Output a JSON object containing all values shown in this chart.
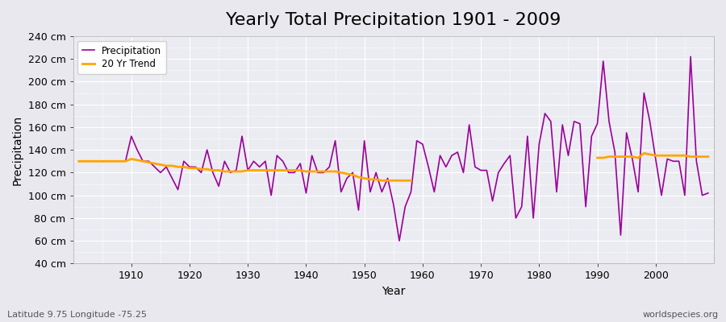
{
  "title": "Yearly Total Precipitation 1901 - 2009",
  "xlabel": "Year",
  "ylabel": "Precipitation",
  "lat_lon_label": "Latitude 9.75 Longitude -75.25",
  "watermark": "worldspecies.org",
  "years": [
    1901,
    1902,
    1903,
    1904,
    1905,
    1906,
    1907,
    1908,
    1909,
    1910,
    1911,
    1912,
    1913,
    1914,
    1915,
    1916,
    1917,
    1918,
    1919,
    1920,
    1921,
    1922,
    1923,
    1924,
    1925,
    1926,
    1927,
    1928,
    1929,
    1930,
    1931,
    1932,
    1933,
    1934,
    1935,
    1936,
    1937,
    1938,
    1939,
    1940,
    1941,
    1942,
    1943,
    1944,
    1945,
    1946,
    1947,
    1948,
    1949,
    1950,
    1951,
    1952,
    1953,
    1954,
    1955,
    1956,
    1957,
    1958,
    1959,
    1960,
    1961,
    1962,
    1963,
    1964,
    1965,
    1966,
    1967,
    1968,
    1969,
    1970,
    1971,
    1972,
    1973,
    1974,
    1975,
    1976,
    1977,
    1978,
    1979,
    1980,
    1981,
    1982,
    1983,
    1984,
    1985,
    1986,
    1987,
    1988,
    1989,
    1990,
    1991,
    1992,
    1993,
    1994,
    1995,
    1996,
    1997,
    1998,
    1999,
    2000,
    2001,
    2002,
    2003,
    2004,
    2005,
    2006,
    2007,
    2008,
    2009
  ],
  "precipitation": [
    130,
    130,
    130,
    130,
    130,
    130,
    130,
    130,
    130,
    152,
    140,
    130,
    130,
    125,
    120,
    125,
    115,
    105,
    130,
    125,
    125,
    120,
    140,
    120,
    108,
    130,
    120,
    122,
    152,
    122,
    130,
    125,
    130,
    100,
    135,
    130,
    120,
    120,
    128,
    102,
    135,
    120,
    120,
    125,
    148,
    103,
    115,
    120,
    87,
    148,
    103,
    120,
    103,
    115,
    92,
    60,
    90,
    103,
    148,
    145,
    125,
    103,
    135,
    125,
    135,
    138,
    120,
    162,
    125,
    122,
    122,
    95,
    120,
    128,
    135,
    80,
    90,
    152,
    80,
    145,
    172,
    165,
    103,
    162,
    135,
    165,
    163,
    90,
    152,
    163,
    218,
    165,
    138,
    65,
    155,
    132,
    103,
    190,
    165,
    132,
    100,
    132,
    130,
    130,
    100,
    222,
    130,
    100,
    102
  ],
  "trend_seg1_years": [
    1901,
    1902,
    1903,
    1904,
    1905,
    1906,
    1907,
    1908,
    1909,
    1910,
    1911,
    1912,
    1913,
    1914,
    1915,
    1916,
    1917,
    1918,
    1919,
    1920,
    1921,
    1922,
    1923,
    1924,
    1925,
    1926,
    1927,
    1928,
    1929,
    1930,
    1931,
    1932,
    1933,
    1934,
    1935,
    1936,
    1937,
    1938,
    1939,
    1940,
    1941,
    1942,
    1943,
    1944,
    1945,
    1946,
    1947,
    1948,
    1949,
    1950,
    1951,
    1952,
    1953,
    1954,
    1955,
    1956,
    1957,
    1958
  ],
  "trend_seg1_values": [
    130,
    130,
    130,
    130,
    130,
    130,
    130,
    130,
    130,
    132,
    131,
    130,
    129,
    128,
    127,
    126,
    126,
    125,
    125,
    124,
    124,
    123,
    123,
    122,
    122,
    121,
    121,
    121,
    121,
    122,
    122,
    122,
    122,
    122,
    122,
    122,
    122,
    122,
    122,
    121,
    121,
    121,
    121,
    121,
    121,
    120,
    119,
    118,
    116,
    115,
    114,
    114,
    113,
    113,
    113,
    113,
    113,
    113
  ],
  "trend_seg2_years": [
    1990,
    1991,
    1992,
    1993,
    1994,
    1995,
    1996,
    1997,
    1998,
    1999,
    2000,
    2001,
    2002,
    2003,
    2004,
    2005,
    2006,
    2007,
    2008,
    2009
  ],
  "trend_seg2_values": [
    133,
    133,
    134,
    134,
    134,
    134,
    134,
    133,
    137,
    136,
    135,
    135,
    135,
    135,
    135,
    135,
    134,
    134,
    134,
    134
  ],
  "precip_color": "#990099",
  "trend_color": "#FFA500",
  "bg_color": "#e8e8ee",
  "plot_bg_color": "#ebebf2",
  "grid_color": "#ffffff",
  "ylim": [
    40,
    240
  ],
  "yticks": [
    40,
    60,
    80,
    100,
    120,
    140,
    160,
    180,
    200,
    220,
    240
  ],
  "xticks": [
    1910,
    1920,
    1930,
    1940,
    1950,
    1960,
    1970,
    1980,
    1990,
    2000
  ],
  "title_fontsize": 16,
  "axis_fontsize": 10,
  "tick_fontsize": 9
}
